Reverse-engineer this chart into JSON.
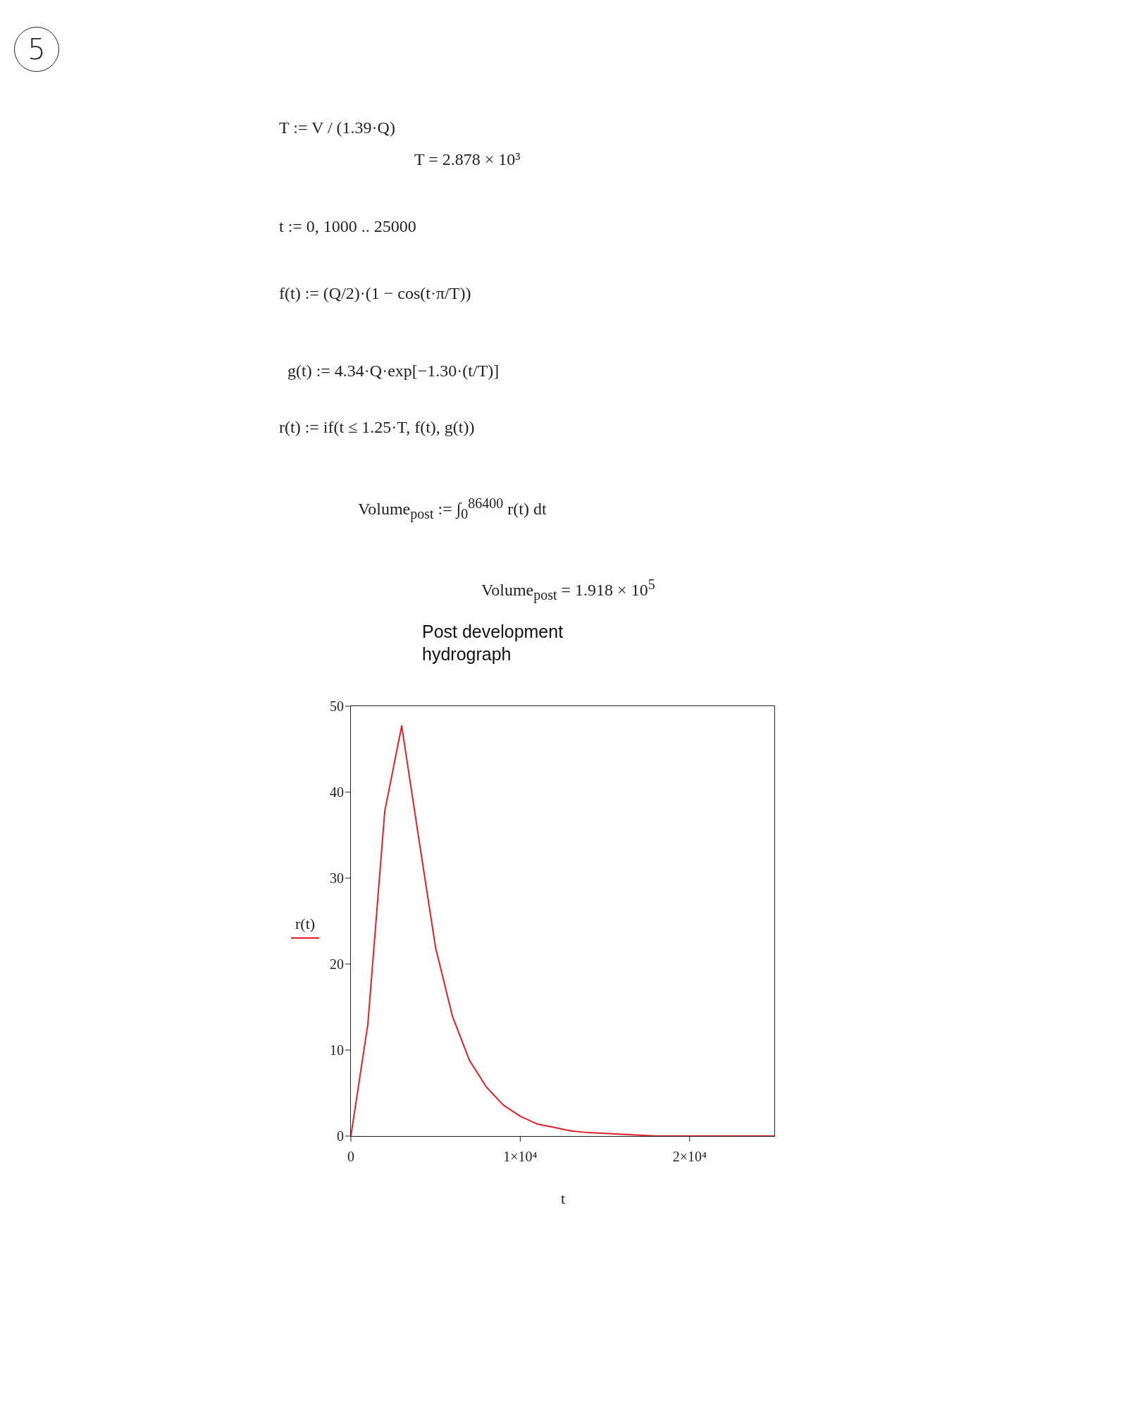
{
  "chart_data": {
    "type": "line",
    "title": "Post development hydrograph",
    "xlabel": "t",
    "ylabel": "r(t)",
    "annotations": [
      "5",
      "T := V / (1.39·Q)",
      "T = 2.878 × 10³",
      "t := 0, 1000 .. 25000",
      "f(t) := (Q/2)·(1 − cos(t·π/T))",
      "g(t) := 4.34·Q·exp[−1.30·(t/T)]",
      "r(t) := if(t ≤ 1.25·T, f(t), g(t))",
      "Volume$_{post}$ := ∫$_{0}$$^{86400}$ r(t) dt",
      "Volume$_{post}$ = 1.918 × 10$^{5}$"
    ],
    "x": [
      0,
      1000,
      2000,
      3000,
      4000,
      5000,
      6000,
      7000,
      8000,
      9000,
      10000,
      11000,
      12000,
      13000,
      14000,
      15000,
      16000,
      17000,
      18000,
      19000,
      20000,
      21000,
      22000,
      23000,
      24000,
      25000
    ],
    "series": [
      {
        "color": "#e0202a",
        "values": [
          0,
          13,
          37.8,
          47.7,
          34.7,
          21.9,
          13.9,
          8.8,
          5.7,
          3.6,
          2.3,
          1.4,
          1,
          0.6,
          0.4,
          0.3,
          0.2,
          0.1,
          0,
          0,
          0,
          0,
          0,
          0,
          0,
          0
        ]
      }
    ],
    "xlim": [
      0,
      25000
    ],
    "xticks": [
      0,
      {
        "value": 10000,
        "label": "1×10⁴"
      },
      {
        "value": 20000,
        "label": "2×10⁴"
      }
    ],
    "ylim": [
      0,
      50
    ],
    "yticks": [
      0,
      10,
      20,
      30,
      40,
      50
    ],
    "grid": false,
    "marker": "none",
    "line_style": "solid"
  }
}
